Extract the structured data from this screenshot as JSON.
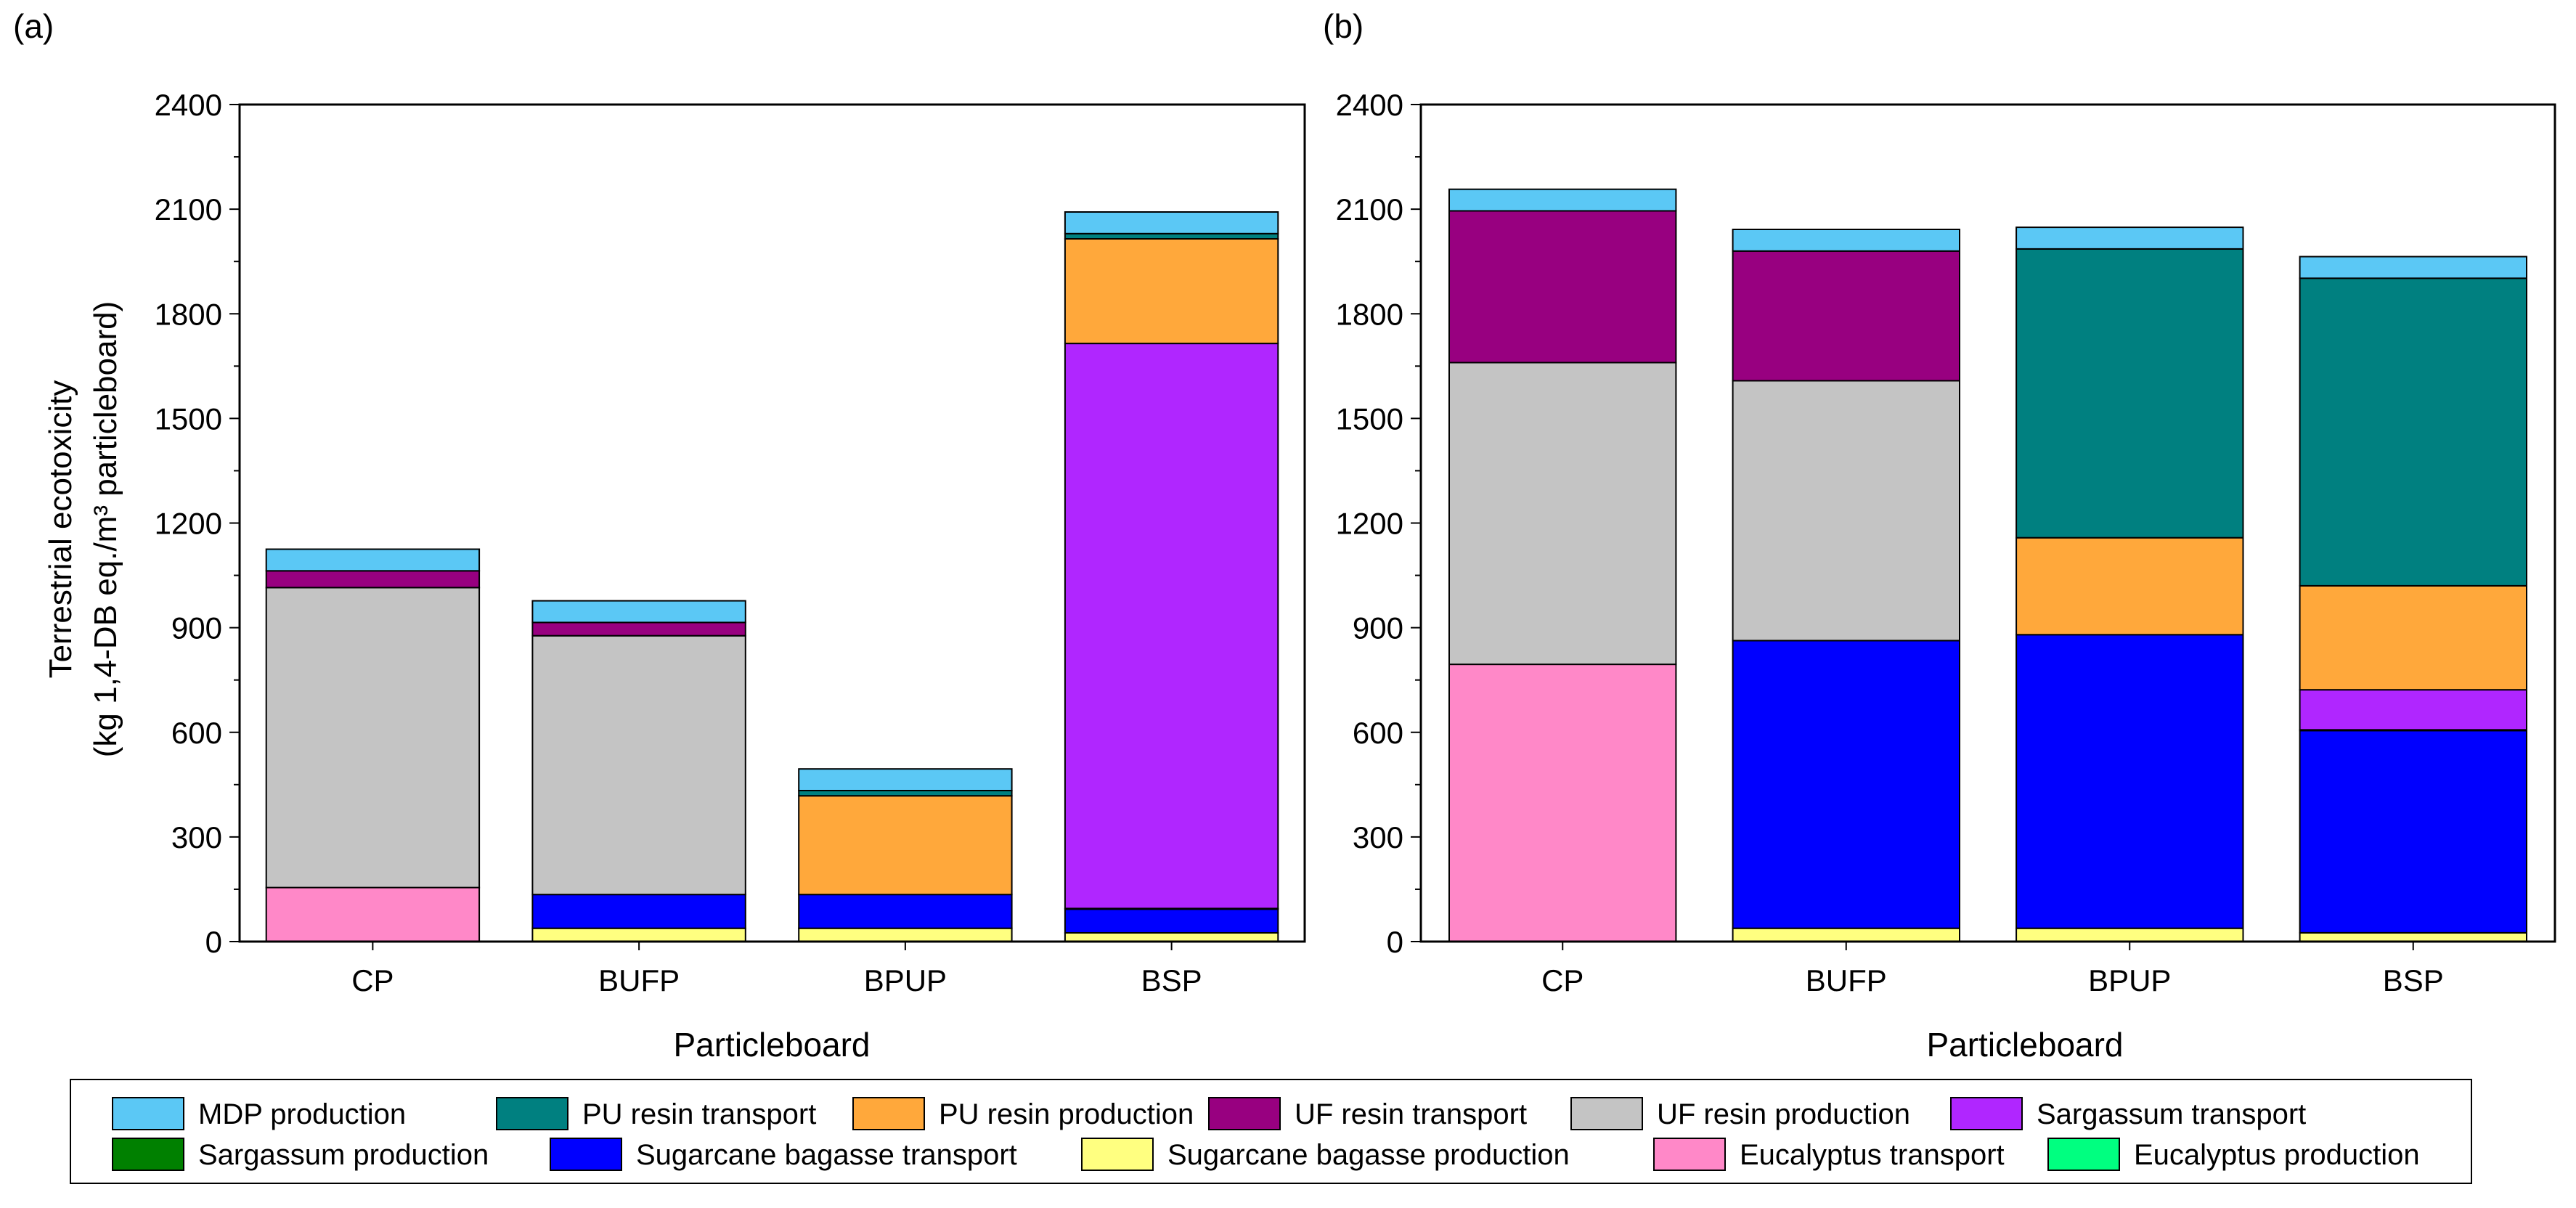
{
  "chart_data": [
    {
      "type": "bar",
      "stacked": true,
      "panel": "(a)",
      "xlabel": "Particleboard",
      "ylabel": "Terrestrial ecotoxicity",
      "ylabel_unit": "(kg 1,4-DB eq./m³ particleboard)",
      "ylim": [
        0,
        2400
      ],
      "yticks": [
        "0",
        "300",
        "600",
        "900",
        "1200",
        "1500",
        "1800",
        "2100",
        "2400"
      ],
      "categories": [
        "CP",
        "BUFP",
        "BPUP",
        "BSP"
      ],
      "series": [
        {
          "name": "Eucalyptus production",
          "values": [
            0,
            0,
            0,
            0
          ]
        },
        {
          "name": "Eucalyptus transport",
          "values": [
            155,
            0,
            0,
            0
          ]
        },
        {
          "name": "Sugarcane bagasse production",
          "values": [
            0,
            38,
            38,
            25
          ]
        },
        {
          "name": "Sugarcane bagasse transport",
          "values": [
            0,
            97,
            97,
            68
          ]
        },
        {
          "name": "Sargassum production",
          "values": [
            0,
            0,
            0,
            2
          ]
        },
        {
          "name": "Sargassum transport",
          "values": [
            0,
            0,
            0,
            1620
          ]
        },
        {
          "name": "UF resin production",
          "values": [
            860,
            742,
            0,
            0
          ]
        },
        {
          "name": "UF resin transport",
          "values": [
            48,
            38,
            0,
            0
          ]
        },
        {
          "name": "PU resin production",
          "values": [
            0,
            0,
            283,
            300
          ]
        },
        {
          "name": "PU resin transport",
          "values": [
            0,
            0,
            15,
            15
          ]
        },
        {
          "name": "MDP production",
          "values": [
            62,
            62,
            62,
            62
          ]
        }
      ]
    },
    {
      "type": "bar",
      "stacked": true,
      "panel": "(b)",
      "xlabel": "Particleboard",
      "ylim": [
        0,
        2400
      ],
      "yticks": [
        "0",
        "300",
        "600",
        "900",
        "1200",
        "1500",
        "1800",
        "2100",
        "2400"
      ],
      "categories": [
        "CP",
        "BUFP",
        "BPUP",
        "BSP"
      ],
      "series": [
        {
          "name": "Eucalyptus production",
          "values": [
            0,
            0,
            0,
            0
          ]
        },
        {
          "name": "Eucalyptus transport",
          "values": [
            795,
            0,
            0,
            0
          ]
        },
        {
          "name": "Sugarcane bagasse production",
          "values": [
            0,
            38,
            38,
            25
          ]
        },
        {
          "name": "Sugarcane bagasse transport",
          "values": [
            0,
            825,
            842,
            580
          ]
        },
        {
          "name": "Sargassum production",
          "values": [
            0,
            0,
            0,
            2
          ]
        },
        {
          "name": "Sargassum transport",
          "values": [
            0,
            0,
            0,
            115
          ]
        },
        {
          "name": "UF resin production",
          "values": [
            865,
            745,
            0,
            0
          ]
        },
        {
          "name": "UF resin transport",
          "values": [
            435,
            372,
            0,
            0
          ]
        },
        {
          "name": "PU resin production",
          "values": [
            0,
            0,
            278,
            298
          ]
        },
        {
          "name": "PU resin transport",
          "values": [
            0,
            0,
            828,
            882
          ]
        },
        {
          "name": "MDP production",
          "values": [
            62,
            62,
            62,
            62
          ]
        }
      ]
    }
  ],
  "legend": [
    {
      "name": "MDP production",
      "color": "#5bc8f5"
    },
    {
      "name": "PU resin transport",
      "color": "#008080"
    },
    {
      "name": "PU resin production",
      "color": "#ffa83b"
    },
    {
      "name": "UF resin transport",
      "color": "#980080"
    },
    {
      "name": "UF resin production",
      "color": "#c4c4c4"
    },
    {
      "name": "Sargassum transport",
      "color": "#b026ff"
    },
    {
      "name": "Sargassum production",
      "color": "#008000"
    },
    {
      "name": "Sugarcane bagasse transport",
      "color": "#0000ff"
    },
    {
      "name": "Sugarcane bagasse production",
      "color": "#ffff80"
    },
    {
      "name": "Eucalyptus transport",
      "color": "#ff88c8"
    },
    {
      "name": "Eucalyptus production",
      "color": "#00ff80"
    }
  ]
}
